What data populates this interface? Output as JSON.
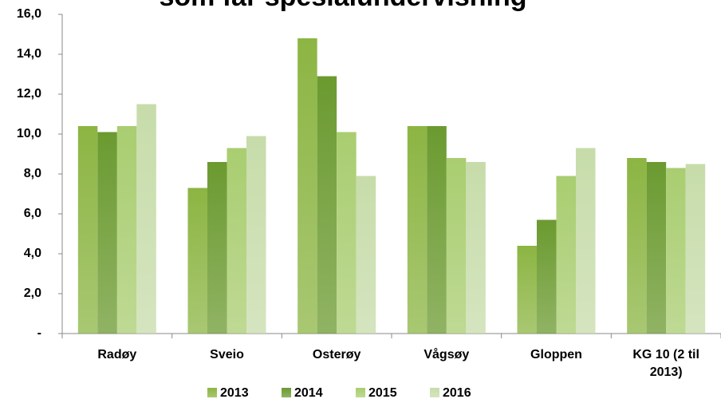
{
  "chart_data": {
    "type": "bar",
    "title": "som får spesialundervisning",
    "categories": [
      "Radøy",
      "Sveio",
      "Osterøy",
      "Vågsøy",
      "Gloppen",
      "KG 10 (2 til 2013)"
    ],
    "series": [
      {
        "name": "2013",
        "color": "#8cb543",
        "values": [
          10.4,
          7.3,
          14.8,
          10.4,
          4.4,
          8.8
        ]
      },
      {
        "name": "2014",
        "color": "#6b9a30",
        "values": [
          10.1,
          8.6,
          12.9,
          10.4,
          5.7,
          8.6
        ]
      },
      {
        "name": "2015",
        "color": "#a9cd70",
        "values": [
          10.4,
          9.3,
          10.1,
          8.8,
          7.9,
          8.3
        ]
      },
      {
        "name": "2016",
        "color": "#c7dcaa",
        "values": [
          11.5,
          9.9,
          7.9,
          8.6,
          9.3,
          8.5
        ]
      }
    ],
    "ylim": [
      0,
      16
    ],
    "yticks": [
      {
        "value": 0,
        "label": "-"
      },
      {
        "value": 2,
        "label": "2,0"
      },
      {
        "value": 4,
        "label": "4,0"
      },
      {
        "value": 6,
        "label": "6,0"
      },
      {
        "value": 8,
        "label": "8,0"
      },
      {
        "value": 10,
        "label": "10,0"
      },
      {
        "value": 12,
        "label": "12,0"
      },
      {
        "value": 14,
        "label": "14,0"
      },
      {
        "value": 16,
        "label": "16,0"
      }
    ],
    "legend": "bottom"
  }
}
